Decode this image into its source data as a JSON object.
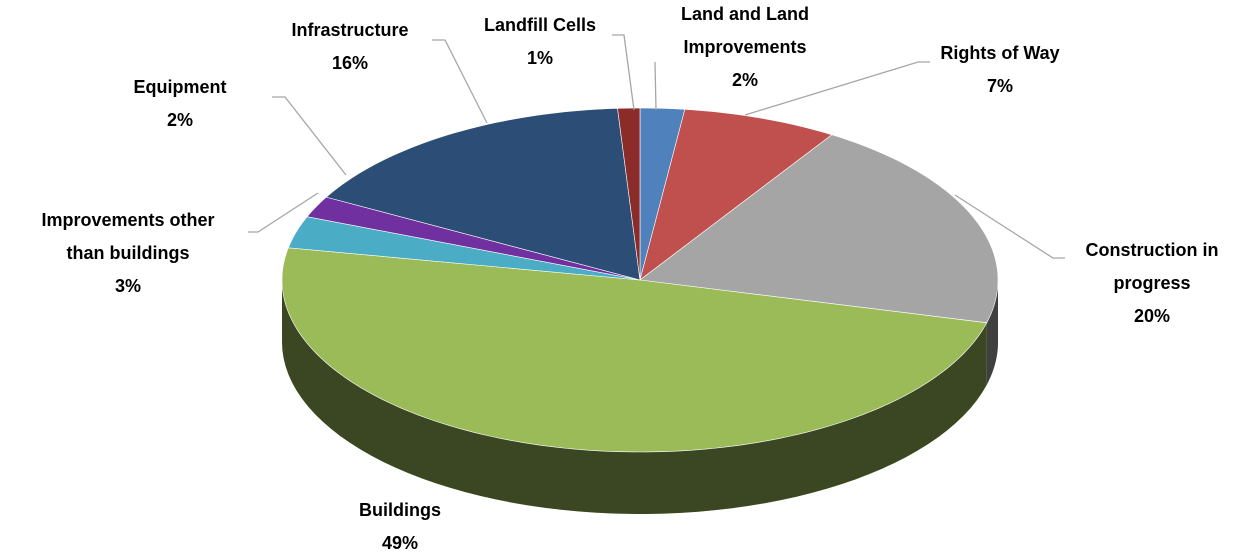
{
  "chart_data": {
    "type": "pie3d",
    "categories": [
      "Land and Land Improvements",
      "Rights of Way",
      "Construction in progress",
      "Buildings",
      "Improvements other than buildings",
      "Equipment",
      "Infrastructure",
      "Landfill Cells"
    ],
    "values": [
      2,
      7,
      20,
      49,
      3,
      2,
      16,
      1
    ],
    "value_labels": [
      "2%",
      "7%",
      "20%",
      "49%",
      "3%",
      "2%",
      "16%",
      "1%"
    ],
    "colors": [
      "#4f81bd",
      "#c0504d",
      "#a5a5a5",
      "#9bbb59",
      "#4bacc6",
      "#7030a0",
      "#2c4d75",
      "#8b2c2a"
    ]
  }
}
